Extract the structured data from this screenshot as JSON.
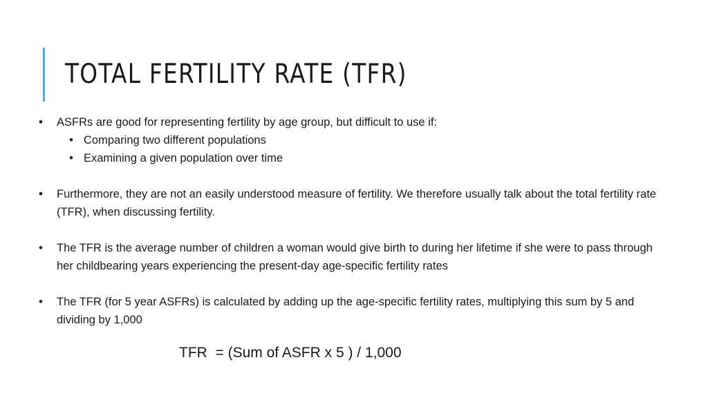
{
  "slide": {
    "title": "TOTAL FERTILITY RATE (TFR)",
    "accent_color": "#4aaed2",
    "bullets": [
      {
        "text": "ASFRs are good for representing fertility by age group, but difficult to use if:",
        "sub_bullets": [
          "Comparing two different populations",
          "Examining a given population over time"
        ]
      },
      {
        "text": "Furthermore, they are not an easily understood measure of fertility.  We therefore usually talk about the total fertility rate (TFR), when discussing fertility."
      },
      {
        "text": "The TFR is the average number of children a woman would give birth to during her lifetime if she were to pass through her childbearing years experiencing the present-day age-specific fertility rates"
      },
      {
        "text": "The TFR (for 5 year ASFRs) is calculated by adding up the age-specific fertility rates, multiplying this sum by 5 and dividing by 1,000"
      }
    ],
    "formula": "TFR  = (Sum of ASFR x 5 ) / 1,000"
  }
}
